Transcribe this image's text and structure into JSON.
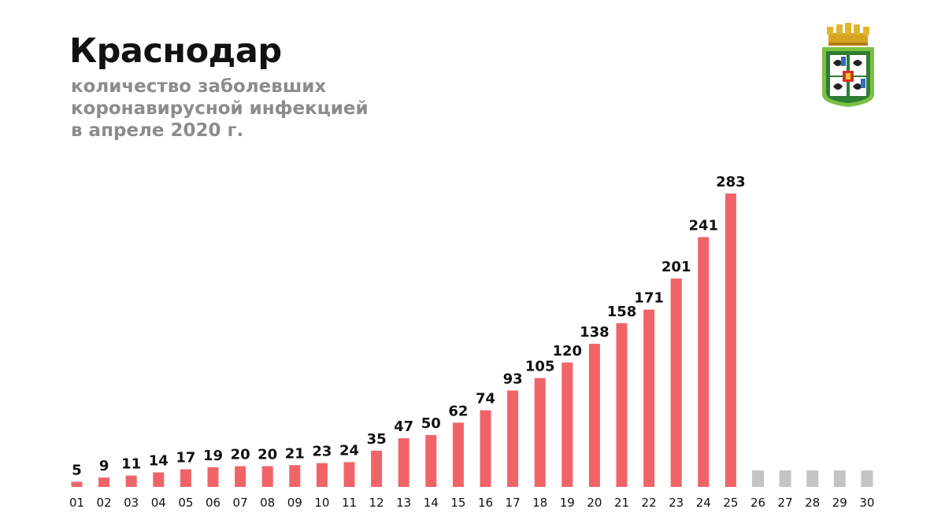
{
  "header": {
    "title": "Краснодар",
    "subtitle_lines": [
      "количество заболевших",
      "коронавирусной инфекцией",
      "в апреле 2020 г."
    ]
  },
  "emblem": {
    "icon": "krasnodar-coat-of-arms-icon"
  },
  "colors": {
    "bar": "#f06468",
    "future_bar": "#c4c4c4",
    "title": "#111111",
    "subtitle": "#8c8c8c"
  },
  "chart_data": {
    "type": "bar",
    "title": "Краснодар",
    "xlabel": "",
    "ylabel": "",
    "ylim": [
      0,
      283
    ],
    "grid": false,
    "legend": "none",
    "categories": [
      "01",
      "02",
      "03",
      "04",
      "05",
      "06",
      "07",
      "08",
      "09",
      "10",
      "11",
      "12",
      "13",
      "14",
      "15",
      "16",
      "17",
      "18",
      "19",
      "20",
      "21",
      "22",
      "23",
      "24",
      "25",
      "26",
      "27",
      "28",
      "29",
      "30"
    ],
    "values": [
      5,
      9,
      11,
      14,
      17,
      19,
      20,
      20,
      21,
      23,
      24,
      35,
      47,
      50,
      62,
      74,
      93,
      105,
      120,
      138,
      158,
      171,
      201,
      241,
      283,
      null,
      null,
      null,
      null,
      null
    ]
  }
}
